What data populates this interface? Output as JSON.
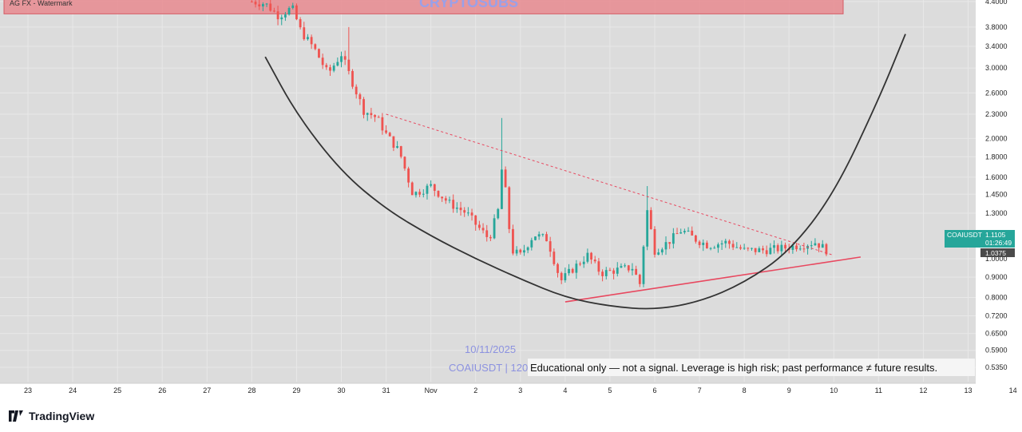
{
  "watermark": {
    "top_left": "AG FX - Watermark",
    "center": "CRYPTOSUBS"
  },
  "stamp": {
    "date": "10/11/2025",
    "symbol_line": "COAIUSDT | 120"
  },
  "disclaimer": "Educational only — not a signal. Leverage is high risk; past performance ≠ future results.",
  "price_badge": {
    "symbol": "COAIUSDT",
    "price": "1.1105",
    "countdown": "01:26:49",
    "level": "1.0375"
  },
  "brand": {
    "name": "TradingView"
  },
  "colors": {
    "up": "#26a69a",
    "down": "#ef5350",
    "trendline": "#e8485f",
    "curve": "#333333",
    "zone": "#e88a8f",
    "badge": "#26a69a",
    "badge_level": "#4a4a4a"
  },
  "chart_data": {
    "type": "candlestick",
    "y_scale": "log",
    "ylim": [
      0.5,
      4.6
    ],
    "y_ticks": [
      "4.4000",
      "3.8000",
      "3.4000",
      "3.0000",
      "2.6000",
      "2.3000",
      "2.0000",
      "1.8000",
      "1.6000",
      "1.4500",
      "1.3000",
      "1.0000",
      "0.9000",
      "0.8000",
      "0.7200",
      "0.6500",
      "0.5900",
      "0.5350"
    ],
    "x_ticks": [
      "23",
      "24",
      "25",
      "26",
      "27",
      "28",
      "29",
      "30",
      "31",
      "Nov",
      "2",
      "3",
      "4",
      "5",
      "6",
      "7",
      "8",
      "9",
      "10",
      "11",
      "12",
      "13",
      "14"
    ],
    "resistance_zone": [
      4.1,
      4.6
    ],
    "price_path": [
      {
        "day": 28.0,
        "price": 4.4
      },
      {
        "day": 28.3,
        "price": 4.35
      },
      {
        "day": 28.6,
        "price": 4.05
      },
      {
        "day": 28.9,
        "price": 4.25
      },
      {
        "day": 29.1,
        "price": 3.7
      },
      {
        "day": 29.4,
        "price": 3.35
      },
      {
        "day": 29.7,
        "price": 2.9
      },
      {
        "day": 30.0,
        "price": 3.25
      },
      {
        "day": 30.2,
        "price": 2.85
      },
      {
        "day": 30.5,
        "price": 2.35
      },
      {
        "day": 30.8,
        "price": 2.25
      },
      {
        "day": 31.0,
        "price": 2.05
      },
      {
        "day": 31.3,
        "price": 1.85
      },
      {
        "day": 31.6,
        "price": 1.45
      },
      {
        "day": 32.0,
        "price": 1.52
      },
      {
        "day": 32.4,
        "price": 1.38
      },
      {
        "day": 32.8,
        "price": 1.3
      },
      {
        "day": 33.0,
        "price": 1.22
      },
      {
        "day": 33.3,
        "price": 1.12
      },
      {
        "day": 33.5,
        "price": 1.32
      },
      {
        "day": 33.6,
        "price": 1.75
      },
      {
        "day": 33.8,
        "price": 1.05
      },
      {
        "day": 34.0,
        "price": 1.02
      },
      {
        "day": 34.3,
        "price": 1.15
      },
      {
        "day": 34.6,
        "price": 1.12
      },
      {
        "day": 34.9,
        "price": 0.88
      },
      {
        "day": 35.2,
        "price": 0.95
      },
      {
        "day": 35.5,
        "price": 1.02
      },
      {
        "day": 35.8,
        "price": 0.92
      },
      {
        "day": 36.2,
        "price": 0.94
      },
      {
        "day": 36.5,
        "price": 0.95
      },
      {
        "day": 36.7,
        "price": 0.85
      },
      {
        "day": 36.8,
        "price": 1.38
      },
      {
        "day": 37.0,
        "price": 1.05
      },
      {
        "day": 37.3,
        "price": 1.1
      },
      {
        "day": 37.6,
        "price": 1.18
      },
      {
        "day": 37.9,
        "price": 1.12
      },
      {
        "day": 38.2,
        "price": 1.08
      },
      {
        "day": 38.6,
        "price": 1.1
      },
      {
        "day": 39.0,
        "price": 1.05
      },
      {
        "day": 39.4,
        "price": 1.05
      },
      {
        "day": 39.8,
        "price": 1.06
      },
      {
        "day": 40.2,
        "price": 1.08
      },
      {
        "day": 40.6,
        "price": 1.1
      },
      {
        "day": 40.9,
        "price": 1.0375
      }
    ],
    "spikes": [
      {
        "day": 33.6,
        "high": 2.25
      },
      {
        "day": 36.85,
        "high": 1.52
      },
      {
        "day": 30.2,
        "high": 3.8
      }
    ],
    "annotations": {
      "descending_trendline": [
        {
          "day": 31.0,
          "price": 2.3
        },
        {
          "day": 41.0,
          "price": 1.02
        }
      ],
      "ascending_trendline": [
        {
          "day": 35.0,
          "price": 0.78
        },
        {
          "day": 41.6,
          "price": 1.01
        }
      ],
      "rounding_bottom_curve": [
        {
          "day": 28.3,
          "price": 3.2
        },
        {
          "day": 29.0,
          "price": 2.3
        },
        {
          "day": 30.0,
          "price": 1.65
        },
        {
          "day": 31.0,
          "price": 1.33
        },
        {
          "day": 32.0,
          "price": 1.14
        },
        {
          "day": 33.0,
          "price": 1.0
        },
        {
          "day": 34.0,
          "price": 0.89
        },
        {
          "day": 35.0,
          "price": 0.8
        },
        {
          "day": 36.0,
          "price": 0.76
        },
        {
          "day": 37.0,
          "price": 0.745
        },
        {
          "day": 38.0,
          "price": 0.78
        },
        {
          "day": 39.0,
          "price": 0.87
        },
        {
          "day": 40.0,
          "price": 1.04
        },
        {
          "day": 41.0,
          "price": 1.45
        },
        {
          "day": 42.0,
          "price": 2.5
        },
        {
          "day": 42.6,
          "price": 3.65
        }
      ]
    }
  }
}
